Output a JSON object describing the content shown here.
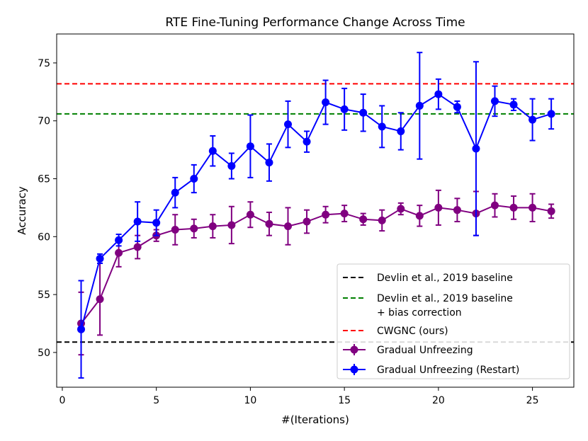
{
  "chart_data": {
    "type": "line",
    "title": "RTE Fine-Tuning Performance Change Across Time",
    "xlabel": "#(Iterations)",
    "ylabel": "Accuracy",
    "xlim": [
      -0.3,
      27.2
    ],
    "ylim": [
      47.0,
      77.5
    ],
    "xticks": [
      0,
      5,
      10,
      15,
      20,
      25
    ],
    "yticks": [
      50,
      55,
      60,
      65,
      70,
      75
    ],
    "legend_position": "lower-right",
    "hlines": [
      {
        "name": "Devlin et al., 2019 baseline",
        "y": 50.9,
        "color": "#000000"
      },
      {
        "name": "Devlin et al., 2019 baseline + bias correction",
        "y": 70.6,
        "color": "#008000"
      },
      {
        "name": "CWGNC (ours)",
        "y": 73.2,
        "color": "#ff0000"
      }
    ],
    "legend_entries": [
      {
        "kind": "dashed",
        "color": "#000000",
        "lines": [
          "Devlin et al., 2019 baseline"
        ]
      },
      {
        "kind": "dashed",
        "color": "#008000",
        "lines": [
          "Devlin et al., 2019 baseline",
          "+ bias correction"
        ]
      },
      {
        "kind": "dashed",
        "color": "#ff0000",
        "lines": [
          "CWGNC (ours)"
        ]
      },
      {
        "kind": "errorbar",
        "color": "#800080",
        "lines": [
          "Gradual Unfreezing"
        ]
      },
      {
        "kind": "errorbar",
        "color": "#0000ff",
        "lines": [
          "Gradual Unfreezing (Restart)"
        ]
      }
    ],
    "series": [
      {
        "name": "Gradual Unfreezing",
        "color": "#800080",
        "x": [
          1,
          2,
          3,
          4,
          5,
          6,
          7,
          8,
          9,
          10,
          11,
          12,
          13,
          14,
          15,
          16,
          17,
          18,
          19,
          20,
          21,
          22,
          23,
          24,
          25,
          26
        ],
        "y": [
          52.5,
          54.6,
          58.6,
          59.1,
          60.1,
          60.6,
          60.7,
          60.9,
          61.0,
          61.9,
          61.1,
          60.9,
          61.3,
          61.9,
          62.0,
          61.5,
          61.4,
          62.4,
          61.8,
          62.5,
          62.3,
          62.0,
          62.7,
          62.5,
          62.5,
          62.2
        ],
        "err": [
          2.7,
          3.1,
          1.2,
          1.0,
          0.5,
          1.3,
          0.8,
          1.0,
          1.6,
          1.1,
          1.0,
          1.6,
          1.0,
          0.7,
          0.7,
          0.5,
          0.9,
          0.5,
          0.9,
          1.5,
          1.0,
          1.9,
          1.0,
          1.0,
          1.2,
          0.6
        ]
      },
      {
        "name": "Gradual Unfreezing (Restart)",
        "color": "#0000ff",
        "x": [
          1,
          2,
          3,
          4,
          5,
          6,
          7,
          8,
          9,
          10,
          11,
          12,
          13,
          14,
          15,
          16,
          17,
          18,
          19,
          20,
          21,
          22,
          23,
          24,
          25,
          26
        ],
        "y": [
          52.0,
          58.1,
          59.7,
          61.3,
          61.2,
          63.8,
          65.0,
          67.4,
          66.1,
          67.8,
          66.4,
          69.7,
          68.2,
          71.6,
          71.0,
          70.7,
          69.5,
          69.1,
          71.3,
          72.3,
          71.2,
          67.6,
          71.7,
          71.4,
          70.1,
          70.6
        ],
        "err": [
          4.2,
          0.4,
          0.5,
          1.7,
          1.1,
          1.3,
          1.2,
          1.3,
          1.1,
          2.7,
          1.6,
          2.0,
          0.9,
          1.9,
          1.8,
          1.6,
          1.8,
          1.6,
          4.6,
          1.3,
          0.5,
          7.5,
          1.3,
          0.5,
          1.8,
          1.3
        ]
      }
    ]
  }
}
